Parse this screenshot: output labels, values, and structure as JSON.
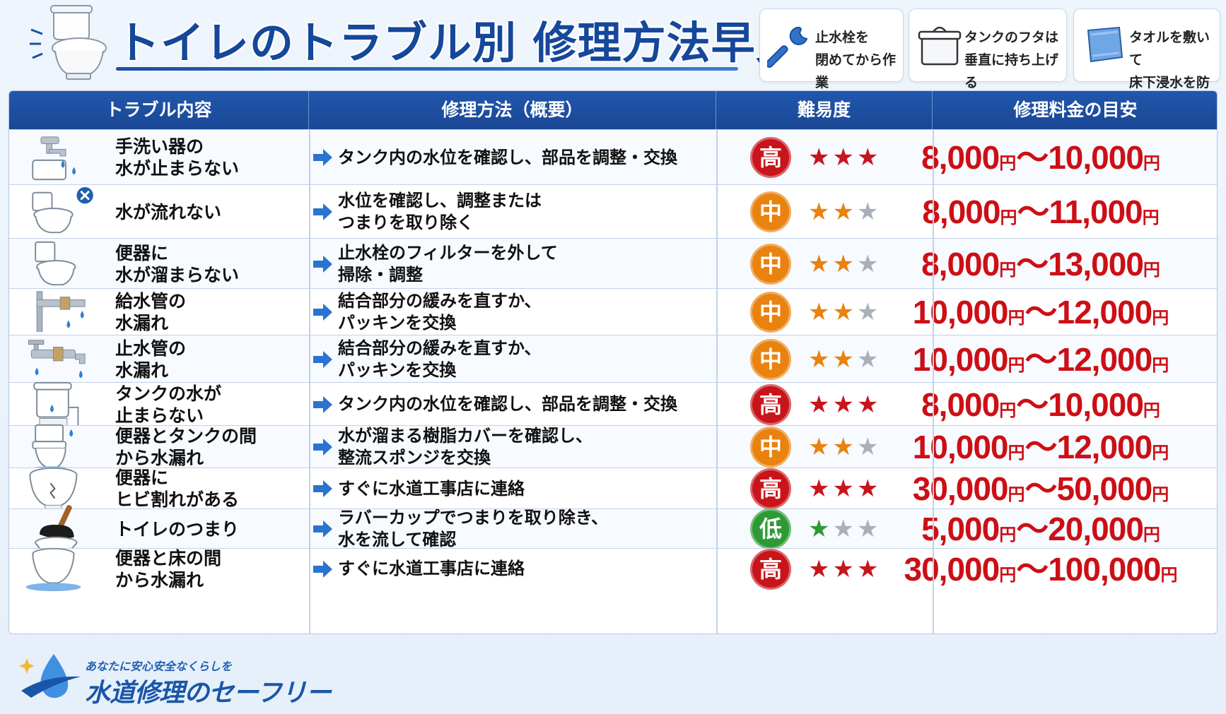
{
  "header": {
    "title": "トイレのトラブル別 修理方法早見表",
    "tips": [
      {
        "icon": "wrench-icon",
        "text": "止水栓を\n閉めてから作業"
      },
      {
        "icon": "tank-lid-icon",
        "text": "タンクのフタは\n垂直に持ち上げる"
      },
      {
        "icon": "towel-icon",
        "text": "タオルを敷いて\n床下浸水を防ぐ"
      }
    ]
  },
  "table": {
    "headers": [
      "トラブル内容",
      "修理方法（概要）",
      "難易度",
      "修理料金の目安"
    ],
    "rows": [
      {
        "icon": "faucet-icon",
        "trouble": "手洗い器の\n水が止まらない",
        "method": "タンク内の水位を確認し、部品を調整・交換",
        "level": "高",
        "stars": 3,
        "price_from": "8,000",
        "price_to": "10,000"
      },
      {
        "icon": "toilet-x-icon",
        "trouble": "水が流れない",
        "method": "水位を確認し、調整または\nつまりを取り除く",
        "level": "中",
        "stars": 2,
        "price_from": "8,000",
        "price_to": "11,000"
      },
      {
        "icon": "toilet-icon",
        "trouble": "便器に\n水が溜まらない",
        "method": "止水栓のフィルターを外して\n掃除・調整",
        "level": "中",
        "stars": 2,
        "price_from": "8,000",
        "price_to": "13,000"
      },
      {
        "icon": "pipe-leak-icon",
        "trouble": "給水管の\n水漏れ",
        "method": "結合部分の緩みを直すか、\nパッキンを交換",
        "level": "中",
        "stars": 2,
        "price_from": "10,000",
        "price_to": "12,000"
      },
      {
        "icon": "valve-leak-icon",
        "trouble": "止水管の\n水漏れ",
        "method": "結合部分の緩みを直すか、\nパッキンを交換",
        "level": "中",
        "stars": 2,
        "price_from": "10,000",
        "price_to": "12,000"
      },
      {
        "icon": "tank-icon",
        "trouble": "タンクの水が\n止まらない",
        "method": "タンク内の水位を確認し、部品を調整・交換",
        "level": "高",
        "stars": 3,
        "price_from": "8,000",
        "price_to": "10,000"
      },
      {
        "icon": "toilet-tank-leak-icon",
        "trouble": "便器とタンクの間\nから水漏れ",
        "method": "水が溜まる樹脂カバーを確認し、\n整流スポンジを交換",
        "level": "中",
        "stars": 2,
        "price_from": "10,000",
        "price_to": "12,000"
      },
      {
        "icon": "cracked-bowl-icon",
        "trouble": "便器に\nヒビ割れがある",
        "method": "すぐに水道工事店に連絡",
        "level": "高",
        "stars": 3,
        "price_from": "30,000",
        "price_to": "50,000"
      },
      {
        "icon": "plunger-icon",
        "trouble": "トイレのつまり",
        "method": "ラバーカップでつまりを取り除き、\n水を流して確認",
        "level": "低",
        "stars": 1,
        "price_from": "5,000",
        "price_to": "20,000"
      },
      {
        "icon": "floor-leak-icon",
        "trouble": "便器と床の間\nから水漏れ",
        "method": "すぐに水道工事店に連絡",
        "level": "高",
        "stars": 3,
        "price_from": "30,000",
        "price_to": "100,000"
      }
    ],
    "yen": "円",
    "tilde": "〜"
  },
  "colors": {
    "high": "#c8141b",
    "mid": "#e9820f",
    "low": "#2f9a35",
    "star_off": "#a9b0b9"
  },
  "footer": {
    "catch": "あなたに安心安全なくらしを",
    "brand": "水道修理のセーフリー"
  }
}
